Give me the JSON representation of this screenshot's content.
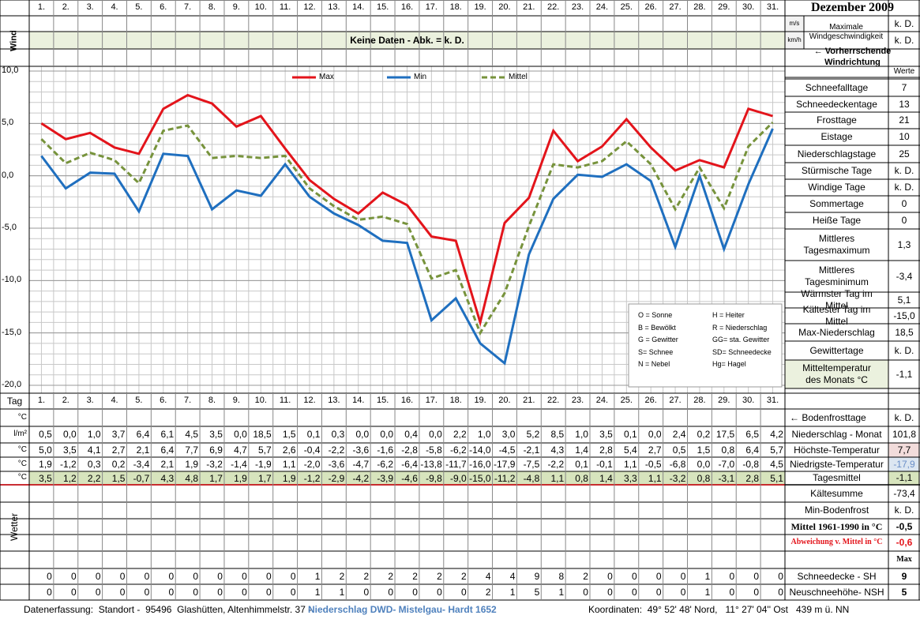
{
  "header": {
    "title": "Dezember 2009"
  },
  "wind": {
    "label": "Wind",
    "unit_ms": "m/s",
    "unit_kmh": "km/h",
    "max_label": "Maximale Windgeschwindigkeit",
    "max_ms": "k. D.",
    "max_kmh": "k. D.",
    "note": "Keine Daten - Abk. = k. D.",
    "direction": "← Vorherrschende Windrichtung"
  },
  "chart_data": {
    "type": "line",
    "categories": [
      "1.",
      "2.",
      "3.",
      "4.",
      "5.",
      "6.",
      "7.",
      "8.",
      "9.",
      "10.",
      "11.",
      "12.",
      "13.",
      "14.",
      "15.",
      "16.",
      "17.",
      "18.",
      "19.",
      "20.",
      "21.",
      "22.",
      "23.",
      "24.",
      "25.",
      "26.",
      "27.",
      "28.",
      "29.",
      "30.",
      "31."
    ],
    "series": [
      {
        "name": "Max",
        "color": "#e3141b",
        "values": [
          5.0,
          3.5,
          4.1,
          2.7,
          2.1,
          6.4,
          7.7,
          6.9,
          4.7,
          5.7,
          2.6,
          -0.4,
          -2.2,
          -3.6,
          -1.6,
          -2.8,
          -5.8,
          -6.2,
          -14.0,
          -4.5,
          -2.1,
          4.3,
          1.4,
          2.8,
          5.4,
          2.7,
          0.5,
          1.5,
          0.8,
          6.4,
          5.7
        ],
        "value_labels": [
          "5,0",
          "3,5",
          "4,1",
          "2,7",
          "2,1",
          "6,4",
          "7,7",
          "6,9",
          "4,7",
          "5,7",
          "2,6",
          "-0,4",
          "-2,2",
          "-3,6",
          "-1,6",
          "-2,8",
          "-5,8",
          "-6,2",
          "-14,0",
          "-4,5",
          "-2,1",
          "4,3",
          "1,4",
          "2,8",
          "5,4",
          "2,7",
          "0,5",
          "1,5",
          "0,8",
          "6,4",
          "5,7"
        ]
      },
      {
        "name": "Min",
        "color": "#1f6fbf",
        "values": [
          1.9,
          -1.2,
          0.3,
          0.2,
          -3.4,
          2.1,
          1.9,
          -3.2,
          -1.4,
          -1.9,
          1.1,
          -2.0,
          -3.6,
          -4.7,
          -6.2,
          -6.4,
          -13.8,
          -11.7,
          -16.0,
          -17.9,
          -7.5,
          -2.2,
          0.1,
          -0.1,
          1.1,
          -0.5,
          -6.8,
          0.0,
          -7.0,
          -0.8,
          4.5
        ],
        "value_labels": [
          "1,9",
          "-1,2",
          "0,3",
          "0,2",
          "-3,4",
          "2,1",
          "1,9",
          "-3,2",
          "-1,4",
          "-1,9",
          "1,1",
          "-2,0",
          "-3,6",
          "-4,7",
          "-6,2",
          "-6,4",
          "-13,8",
          "-11,7",
          "-16,0",
          "-17,9",
          "-7,5",
          "-2,2",
          "0,1",
          "-0,1",
          "1,1",
          "-0,5",
          "-6,8",
          "0,0",
          "-7,0",
          "-0,8",
          "4,5"
        ]
      },
      {
        "name": "Mittel",
        "color": "#77933c",
        "dashed": true,
        "values": [
          3.5,
          1.2,
          2.2,
          1.5,
          -0.7,
          4.3,
          4.8,
          1.7,
          1.9,
          1.7,
          1.9,
          -1.2,
          -2.9,
          -4.2,
          -3.9,
          -4.6,
          -9.8,
          -9.0,
          -15.0,
          -11.2,
          -4.8,
          1.1,
          0.8,
          1.4,
          3.3,
          1.1,
          -3.2,
          0.8,
          -3.1,
          2.8,
          5.1
        ],
        "value_labels": [
          "3,5",
          "1,2",
          "2,2",
          "1,5",
          "-0,7",
          "4,3",
          "4,8",
          "1,7",
          "1,9",
          "1,7",
          "1,9",
          "-1,2",
          "-2,9",
          "-4,2",
          "-3,9",
          "-4,6",
          "-9,8",
          "-9,0",
          "-15,0",
          "-11,2",
          "-4,8",
          "1,1",
          "0,8",
          "1,4",
          "3,3",
          "1,1",
          "-3,2",
          "0,8",
          "-3,1",
          "2,8",
          "5,1"
        ]
      }
    ],
    "ylim": [
      -20,
      10
    ],
    "yticks": [
      {
        "value": 10,
        "label": "10,0"
      },
      {
        "value": 5,
        "label": "5,0"
      },
      {
        "value": 0,
        "label": "0,0"
      },
      {
        "value": -5,
        "label": "-5,0"
      },
      {
        "value": -10,
        "label": "-10,0"
      },
      {
        "value": -15,
        "label": "-15,0"
      },
      {
        "value": -20,
        "label": "-20,0"
      }
    ],
    "grid": true,
    "legend": "top"
  },
  "weather_key": [
    "O = Sonne",
    "H = Heiter",
    "B = Bewölkt",
    "R = Niederschlag",
    "G = Gewitter",
    "GG= sta. Gewitter",
    "S= Schnee",
    "SD= Schneedecke",
    "N = Nebel",
    "Hg= Hagel"
  ],
  "stats": {
    "header": "Werte",
    "rows": [
      [
        "Schneefalltage",
        "7"
      ],
      [
        "Schneedeckentage",
        "13"
      ],
      [
        "Frosttage",
        "21"
      ],
      [
        "Eistage",
        "10"
      ],
      [
        "Niederschlagstage",
        "25"
      ],
      [
        "Stürmische Tage",
        "k. D."
      ],
      [
        "Windige Tage",
        "k. D."
      ],
      [
        "Sommertage",
        "0"
      ],
      [
        "Heiße Tage",
        "0"
      ],
      [
        "Mittleres Tagesmaximum",
        "1,3"
      ],
      [
        "Mittleres Tagesminimum",
        "-3,4"
      ],
      [
        "Wärmster Tag im Mittel",
        "5,1"
      ],
      [
        "Kältester Tag im Mittel",
        "-15,0"
      ],
      [
        "Max-Niederschlag",
        "18,5"
      ],
      [
        "Gewittertage",
        "k. D."
      ],
      [
        "Mitteltemperatur des Monats °C",
        "-1,1"
      ]
    ]
  },
  "table": {
    "tag": "Tag",
    "units": [
      "°C",
      "l/m²",
      "°C",
      "°C",
      "°C"
    ],
    "wetter": "Wetter",
    "precip": [
      "0,5",
      "0,0",
      "1,0",
      "3,7",
      "6,4",
      "6,1",
      "4,5",
      "3,5",
      "0,0",
      "18,5",
      "1,5",
      "0,1",
      "0,3",
      "0,0",
      "0,0",
      "0,4",
      "0,0",
      "2,2",
      "1,0",
      "3,0",
      "5,2",
      "8,5",
      "1,0",
      "3,5",
      "0,1",
      "0,0",
      "2,4",
      "0,2",
      "17,5",
      "6,5",
      "4,2"
    ],
    "sh": [
      0,
      0,
      0,
      0,
      0,
      0,
      0,
      0,
      0,
      0,
      0,
      1,
      2,
      2,
      2,
      2,
      2,
      2,
      4,
      4,
      9,
      8,
      2,
      0,
      0,
      0,
      0,
      1,
      0,
      0,
      0
    ],
    "nsh": [
      0,
      0,
      0,
      0,
      0,
      0,
      0,
      0,
      0,
      0,
      0,
      1,
      1,
      0,
      0,
      0,
      0,
      0,
      2,
      1,
      5,
      1,
      0,
      0,
      0,
      0,
      0,
      1,
      0,
      0,
      0
    ]
  },
  "summary": [
    [
      "← Bodenfrosttage",
      "k. D."
    ],
    [
      "Niederschlag - Monat",
      "101,8"
    ],
    [
      "Höchste-Temperatur",
      "7,7"
    ],
    [
      "Niedrigste-Temperatur",
      "-17,9"
    ],
    [
      "Tagesmittel",
      "-1,1"
    ],
    [
      "Kältesumme",
      "-73,4"
    ],
    [
      "Min-Bodenfrost",
      "k. D."
    ],
    [
      "Mittel 1961-1990 in °C",
      "-0,5"
    ],
    [
      "Abweichung v. Mittel in °C",
      "-0,6"
    ],
    [
      null,
      "Max"
    ],
    [
      "Schneedecke -  SH",
      "9"
    ],
    [
      "Neuschneehöhe- NSH",
      "5"
    ]
  ],
  "footer": {
    "left": "Datenerfassung:  Standort -  95496  Glashütten, Altenhimmelstr. 37 - ",
    "left_link": "Niederschlag DWD- Mistelgau- Hardt 1652",
    "right": "Koordinaten:  49° 52' 48' Nord,   11° 27' 04'' Ost   439 m ü. NN"
  }
}
